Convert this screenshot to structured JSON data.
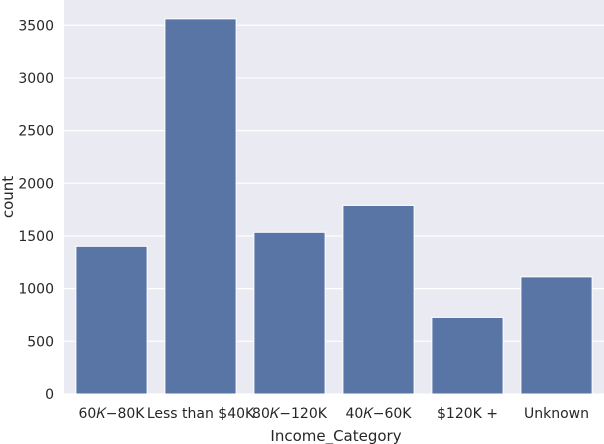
{
  "colors": {
    "plot_background": "#eaeaf2",
    "grid": "#ffffff",
    "bar": "#5875a6",
    "bar_edge": "#ffffff",
    "text": "#262626"
  },
  "chart_data": {
    "type": "bar",
    "title": "",
    "xlabel": "Income_Category",
    "ylabel": "count",
    "categories": [
      "$60K - $80K",
      "Less than $40K",
      "$80K - $120K",
      "$40K - $60K",
      "$120K +",
      "Unknown"
    ],
    "x_tick_labels": [
      "60𝐾−80K",
      "Less than $40K",
      "80𝐾−120K",
      "40𝐾−60K",
      "$120K +",
      "Unknown"
    ],
    "values": [
      1402,
      3561,
      1535,
      1790,
      727,
      1112
    ],
    "ylim": [
      0,
      3740
    ],
    "yticks": [
      0,
      500,
      1000,
      1500,
      2000,
      2500,
      3000,
      3500
    ],
    "grid": true,
    "legend": "none"
  }
}
